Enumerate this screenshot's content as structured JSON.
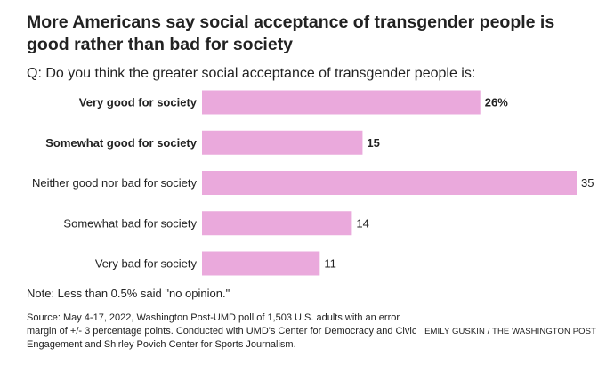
{
  "title": "More Americans say social acceptance of transgender people is good rather than bad for society",
  "question": "Q: Do you think the greater social acceptance of transgender people is:",
  "note": "Note: Less than 0.5% said \"no opinion.\"",
  "source": "Source: May 4-17, 2022, Washington Post-UMD poll of 1,503 U.S. adults with an error margin of +/- 3 percentage points. Conducted with UMD's Center for Democracy and Civic Engagement and Shirley Povich Center for Sports Journalism.",
  "credit": "EMILY GUSKIN / THE WASHINGTON POST",
  "colors": {
    "bar": "#eaa9dc",
    "text": "#222222"
  },
  "chart_data": {
    "type": "bar",
    "orientation": "horizontal",
    "title": "More Americans say social acceptance of transgender people is good rather than bad for society",
    "categories": [
      "Very good for society",
      "Somewhat good for society",
      "Neither good nor bad for society",
      "Somewhat bad for society",
      "Very bad for society"
    ],
    "values": [
      26,
      15,
      35,
      14,
      11
    ],
    "value_labels": [
      "26%",
      "15",
      "35",
      "14",
      "11"
    ],
    "bold_categories": [
      true,
      true,
      false,
      false,
      false
    ],
    "unit": "%",
    "xlim": [
      0,
      35
    ],
    "grid": false,
    "legend": "none",
    "xlabel": "",
    "ylabel": ""
  }
}
